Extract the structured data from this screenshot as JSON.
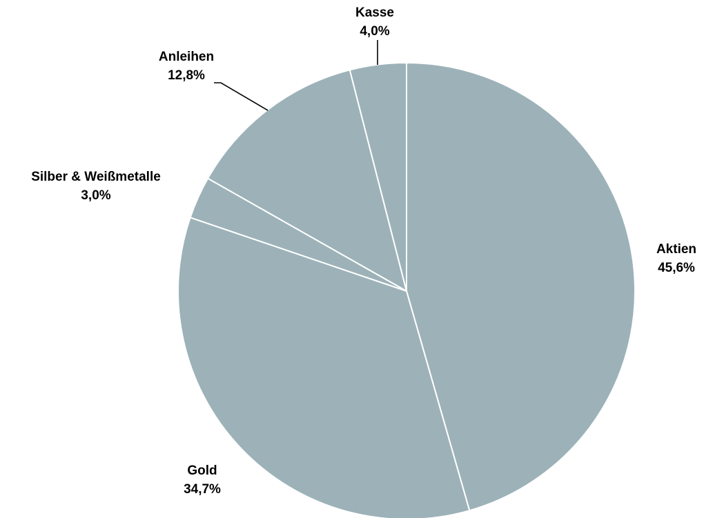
{
  "chart_data": {
    "type": "pie",
    "slices": [
      {
        "label": "Aktien",
        "value_label": "45,6%",
        "value": 45.6
      },
      {
        "label": "Gold",
        "value_label": "34,7%",
        "value": 34.7
      },
      {
        "label": "Silber & Weißmetalle",
        "value_label": "3,0%",
        "value": 3.0
      },
      {
        "label": "Anleihen",
        "value_label": "12,8%",
        "value": 12.8
      },
      {
        "label": "Kasse",
        "value_label": "4,0%",
        "value": 4.0
      }
    ],
    "start": "12 o'clock",
    "direction": "clockwise",
    "slice_color": "#9cb2b8",
    "separator_color": "#ffffff",
    "legend": "none",
    "labels": "outside, name above percentage"
  }
}
